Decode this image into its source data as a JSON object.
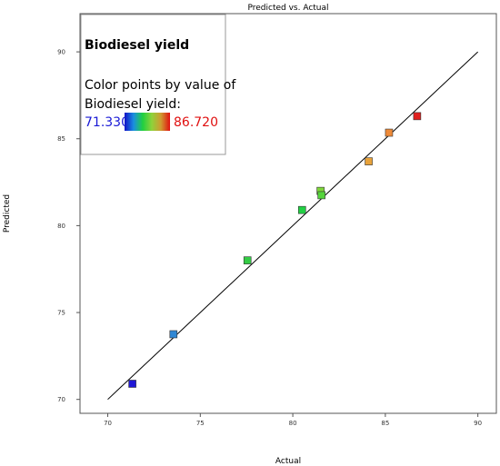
{
  "chart_data": {
    "type": "scatter",
    "title": "Predicted vs. Actual",
    "xlabel": "Actual",
    "ylabel": "Predicted",
    "xlim": [
      68.5,
      91
    ],
    "ylim": [
      69.2,
      92.2
    ],
    "xticks": [
      70,
      75,
      80,
      85,
      90
    ],
    "yticks": [
      70,
      75,
      80,
      85,
      90
    ],
    "reference_line": {
      "from": [
        70,
        70
      ],
      "to": [
        90,
        90
      ]
    },
    "points": [
      {
        "x": 71.33,
        "y": 70.9,
        "value": 71.33,
        "color": "#1f17d6"
      },
      {
        "x": 73.55,
        "y": 73.75,
        "value": 73.55,
        "color": "#2f87d4"
      },
      {
        "x": 77.55,
        "y": 78.0,
        "value": 77.55,
        "color": "#33cc44"
      },
      {
        "x": 80.5,
        "y": 80.9,
        "value": 80.5,
        "color": "#22d044"
      },
      {
        "x": 81.5,
        "y": 82.0,
        "value": 81.5,
        "color": "#7ed63a"
      },
      {
        "x": 81.55,
        "y": 81.75,
        "value": 81.55,
        "color": "#55d43c"
      },
      {
        "x": 84.1,
        "y": 83.7,
        "value": 84.1,
        "color": "#e8a23a"
      },
      {
        "x": 85.2,
        "y": 85.35,
        "value": 85.2,
        "color": "#ee8a38"
      },
      {
        "x": 86.72,
        "y": 86.3,
        "value": 86.72,
        "color": "#e0201e"
      }
    ],
    "grid": false,
    "legend": {
      "placement": "top-left",
      "title": "Biodiesel yield",
      "line1": "Color points by value of",
      "line2": "Biodiesel yield:",
      "min_label": "71.330",
      "max_label": "86.720",
      "min_color": "#1a1ad6",
      "max_color": "#e01010",
      "gradient": [
        "#1212c8",
        "#1a8fe0",
        "#20d040",
        "#8fd23a",
        "#d09a30",
        "#e01010"
      ]
    }
  }
}
